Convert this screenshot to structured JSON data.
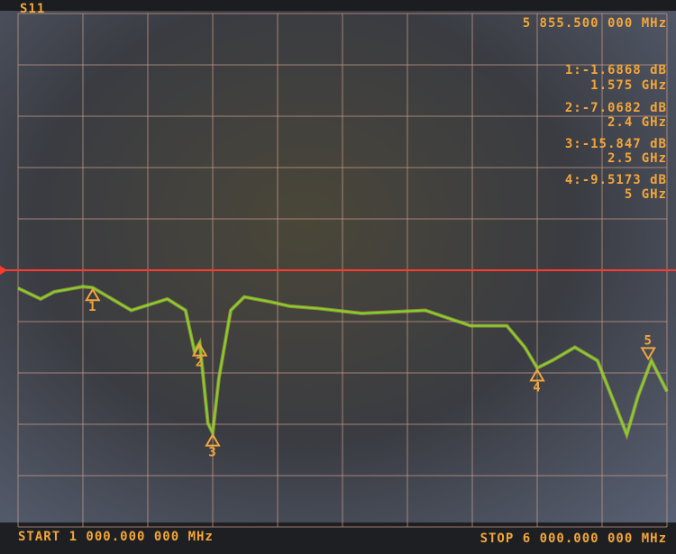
{
  "chart_data": {
    "type": "line",
    "channel": "S11",
    "active_marker_label": "5 855.500 000 MHz",
    "start_label": "START 1 000.000 000 MHz",
    "stop_label": "STOP 6 000.000 000 MHz",
    "xlim": [
      1000,
      6000
    ],
    "ylim": [
      -25,
      25
    ],
    "xticks": [
      1000,
      1500,
      2000,
      2500,
      3000,
      3500,
      4000,
      4500,
      5000,
      5500,
      6000
    ],
    "yticks": [
      -25,
      -20,
      -15,
      -10,
      -5,
      0,
      5,
      10,
      15,
      20,
      25
    ],
    "grid": true,
    "reference_level": 0,
    "reference_color": "#ff3b30",
    "x": [
      1000,
      1174,
      1279,
      1502,
      1575,
      1872,
      2151,
      2290,
      2360,
      2400,
      2463,
      2500,
      2548,
      2639,
      2743,
      2953,
      3092,
      3301,
      3650,
      4138,
      4487,
      4766,
      4905,
      5000,
      5115,
      5290,
      5464,
      5603,
      5690,
      5776,
      5880,
      6000
    ],
    "series": [
      {
        "color": "#7fd42a",
        "values": [
          -1.75,
          -2.8,
          -2.1,
          -1.6,
          -1.69,
          -3.9,
          -2.8,
          -3.9,
          -7.9,
          -7.07,
          -14.9,
          -15.85,
          -10.5,
          -3.9,
          -2.6,
          -3.1,
          -3.5,
          -3.7,
          -4.2,
          -3.9,
          -5.4,
          -5.4,
          -7.5,
          -9.52,
          -8.8,
          -7.5,
          -8.8,
          -13.2,
          -16,
          -12.3,
          -8.8,
          -11.8
        ]
      }
    ],
    "markers": [
      {
        "label": "1",
        "x": 1575,
        "y": -1.6868
      },
      {
        "label": "2",
        "x": 2400,
        "y": -7.0682
      },
      {
        "label": "3",
        "x": 2500,
        "y": -15.847
      },
      {
        "label": "4",
        "x": 5000,
        "y": -9.5173
      },
      {
        "label": "5",
        "x": 5855.5,
        "y": -8.8
      }
    ],
    "readouts": [
      [
        "1:-1.6868 dB",
        "1.575 GHz"
      ],
      [
        "2:-7.0682 dB",
        "2.4 GHz"
      ],
      [
        "3:-15.847 dB",
        "2.5 GHz"
      ],
      [
        "4:-9.5173 dB",
        "5 GHz"
      ]
    ]
  }
}
